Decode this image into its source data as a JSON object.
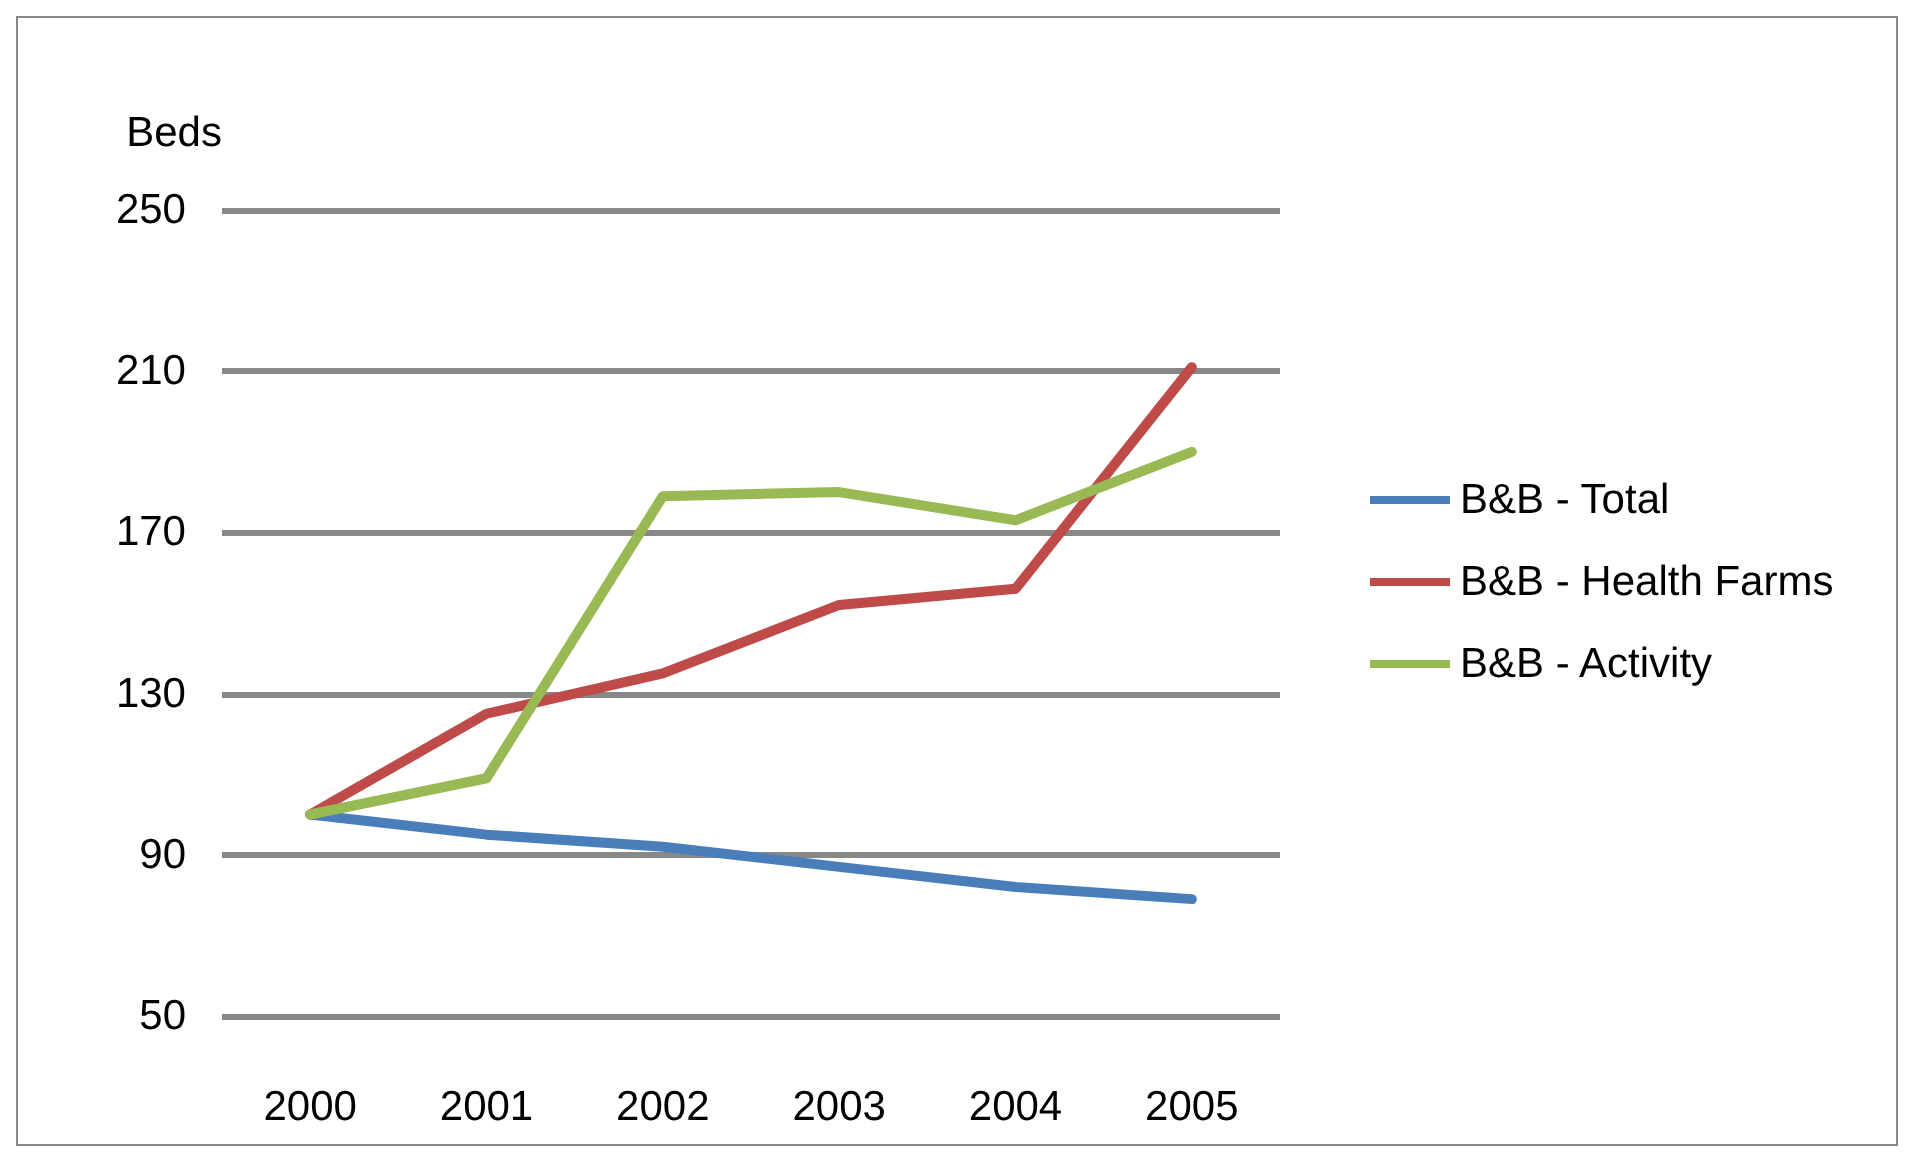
{
  "chart_data": {
    "type": "line",
    "ylabel": "Beds",
    "categories": [
      "2000",
      "2001",
      "2002",
      "2003",
      "2004",
      "2005"
    ],
    "series": [
      {
        "name": "B&B - Total",
        "color": "#4a7ebb",
        "values": [
          100,
          95,
          92,
          87,
          82,
          79
        ]
      },
      {
        "name": "B&B - Health Farms",
        "color": "#be4b48",
        "values": [
          100,
          125,
          135,
          152,
          156,
          211
        ]
      },
      {
        "name": "B&B - Activity",
        "color": "#98b954",
        "values": [
          100,
          109,
          179,
          180,
          173,
          190
        ]
      }
    ],
    "ylim": [
      50,
      250
    ],
    "yticks": [
      50,
      90,
      130,
      170,
      210,
      250
    ],
    "grid": "y",
    "legend": "right",
    "marker": "none",
    "line_style": "solid"
  }
}
